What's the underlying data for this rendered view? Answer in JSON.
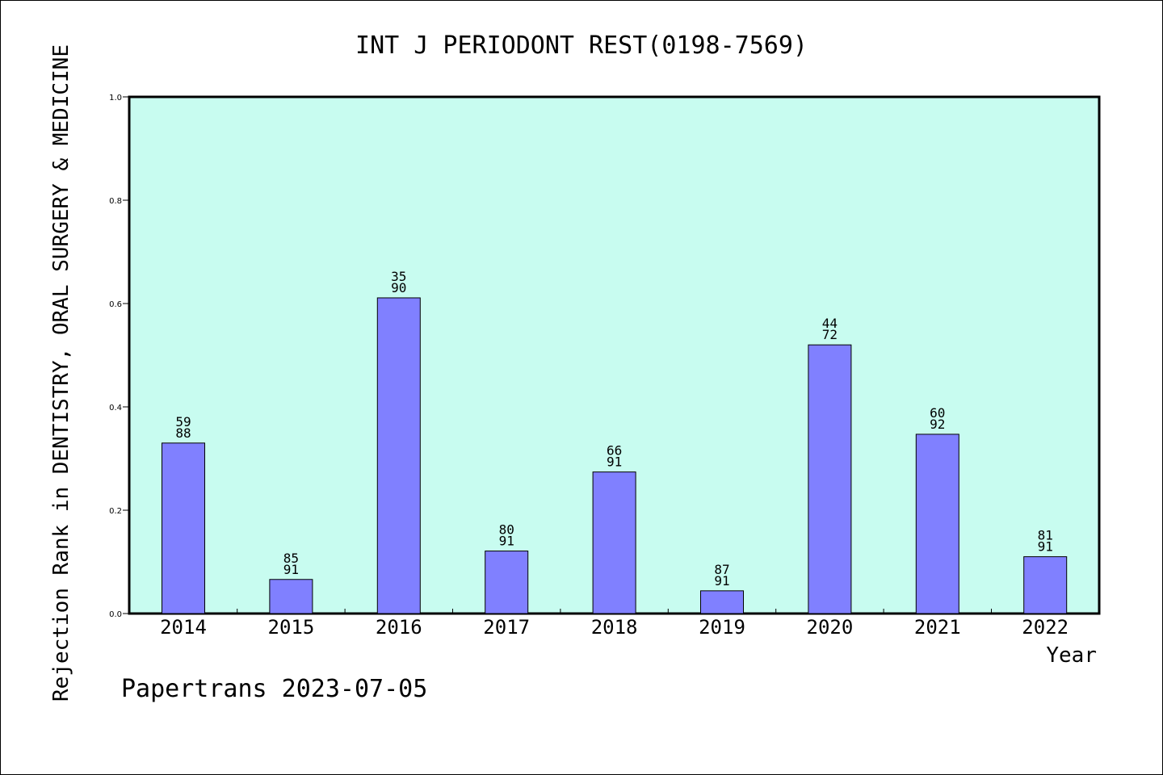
{
  "chart_data": {
    "type": "bar",
    "title": "INT J PERIODONT REST(0198-7569)",
    "xlabel": "Year",
    "ylabel": "Rejection Rank in DENTISTRY, ORAL SURGERY & MEDICINE",
    "ylim": [
      0,
      1.0
    ],
    "yticks": [
      "0.0",
      "0.2",
      "0.4",
      "0.6",
      "0.8",
      "1.0"
    ],
    "categories": [
      "2014",
      "2015",
      "2016",
      "2017",
      "2018",
      "2019",
      "2020",
      "2021",
      "2022"
    ],
    "values": [
      0.33,
      0.066,
      0.611,
      0.121,
      0.274,
      0.044,
      0.52,
      0.347,
      0.11
    ],
    "labels_top": [
      "59",
      "85",
      "35",
      "80",
      "66",
      "87",
      "44",
      "60",
      "81"
    ],
    "labels_bottom": [
      "88",
      "91",
      "90",
      "91",
      "91",
      "91",
      "72",
      "92",
      "91"
    ],
    "grid": false,
    "colors": {
      "plot_bg": "#c8fcf0",
      "bar_fill": "#8080ff",
      "bar_stroke": "#000000"
    }
  },
  "footer": "Papertrans 2023-07-05"
}
